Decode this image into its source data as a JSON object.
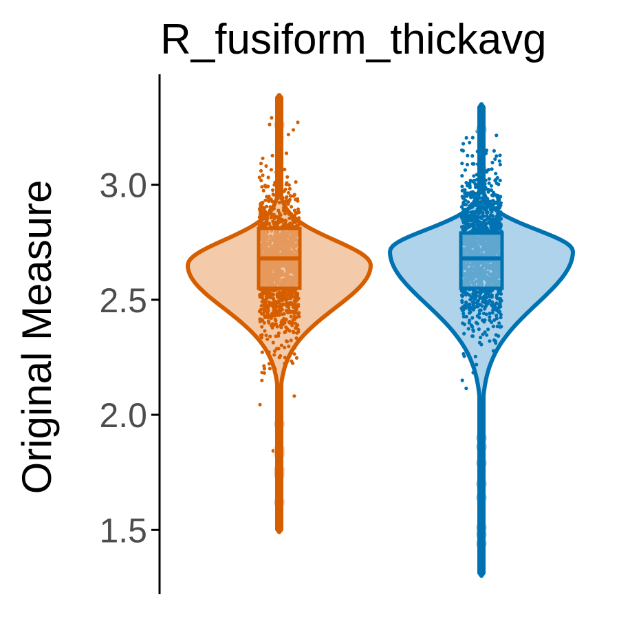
{
  "chart_data": {
    "type": "violin",
    "title": "R_fusiform_thickavg",
    "xlabel": "",
    "ylabel": "Original Measure",
    "ylim": [
      1.22,
      3.48
    ],
    "yticks": [
      1.5,
      2.0,
      2.5,
      3.0
    ],
    "ytick_labels": [
      "1.5",
      "2.0",
      "2.5",
      "3.0"
    ],
    "grid": false,
    "legend": "none",
    "groups": [
      {
        "color": "#D55E00",
        "fill": "#F3CBAA",
        "min": 1.49,
        "max": 3.39,
        "q1": 2.55,
        "median": 2.68,
        "q3": 2.81,
        "mode": 2.65,
        "outliers": [
          1.62,
          1.74,
          1.76,
          1.83,
          1.85,
          1.96,
          3.26
        ]
      },
      {
        "color": "#0072B2",
        "fill": "#AFD3EA",
        "min": 1.3,
        "max": 3.35,
        "q1": 2.55,
        "median": 2.68,
        "q3": 2.79,
        "mode": 2.71,
        "outliers": [
          1.44,
          1.48,
          1.51,
          1.64,
          1.7,
          1.79,
          1.86,
          1.9,
          3.24
        ]
      }
    ]
  }
}
